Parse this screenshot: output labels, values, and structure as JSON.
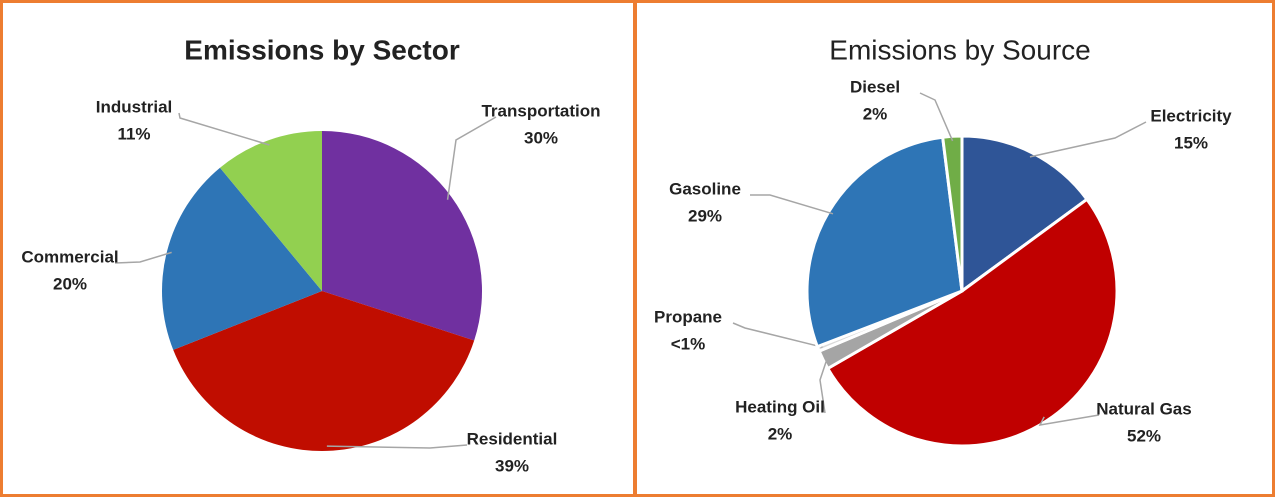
{
  "chart_data": [
    {
      "type": "pie",
      "title": "Emissions by Sector",
      "categories": [
        "Transportation",
        "Residential",
        "Commercial",
        "Industrial"
      ],
      "values": [
        30,
        39,
        20,
        11
      ],
      "value_labels": [
        "30%",
        "39%",
        "20%",
        "11%"
      ],
      "colors": [
        "#7030a0",
        "#c00d00",
        "#2e75b6",
        "#92d050"
      ]
    },
    {
      "type": "pie",
      "title": "Emissions by Source",
      "categories": [
        "Electricity",
        "Natural Gas",
        "Heating Oil",
        "Propane",
        "Gasoline",
        "Diesel"
      ],
      "values": [
        15,
        52,
        2,
        0.5,
        29,
        2
      ],
      "value_labels": [
        "15%",
        "52%",
        "2%",
        "<1%",
        "29%",
        "2%"
      ],
      "colors": [
        "#2f5597",
        "#c00000",
        "#a5a5a5",
        "#d9d9d9",
        "#2e75b6",
        "#70ad47"
      ]
    }
  ]
}
